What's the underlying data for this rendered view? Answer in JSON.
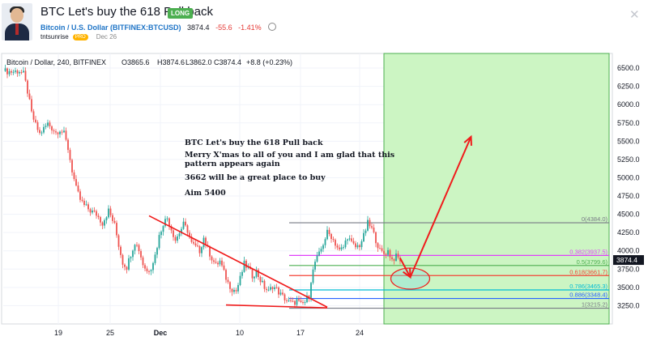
{
  "header": {
    "title": "BTC Let's buy the 618 Pull back",
    "badge": "LONG",
    "symbol": "Bitcoin / U.S. Dollar (BITFINEX:BTCUSD)",
    "price": "3874.4",
    "change": "-55.6",
    "change_pct": "-1.41%",
    "author": "tntsunrise",
    "author_badge": "PRO",
    "date": "Dec 26",
    "close_glyph": "✕"
  },
  "colors": {
    "up_candle": "#26a69a",
    "down_candle": "#ef5350",
    "accent_red": "#f01b1b",
    "target_zone": "#ccf5c3",
    "brand_blue": "#1e74c6"
  },
  "chart_data": {
    "type": "candlestick",
    "title": "Bitcoin / Dollar, 240, BITFINEX",
    "ohlc_legend": {
      "open": "O3865.6",
      "high": "H3874.6",
      "low": "L3862.0",
      "close": "C3874.4",
      "change": "+8.8 (+0.23%)"
    },
    "ylim": [
      3000,
      6700
    ],
    "y_ticks": [
      "6500.0",
      "6250.0",
      "6000.0",
      "5750.0",
      "5500.0",
      "5250.0",
      "5000.0",
      "4750.0",
      "4500.0",
      "4250.0",
      "4000.0",
      "3750.0",
      "3500.0",
      "3250.0"
    ],
    "x_ticks": [
      "19",
      "25",
      "Dec",
      "10",
      "17",
      "24"
    ],
    "last_price_label": "3874.4",
    "price_path": [
      [
        0,
        6460
      ],
      [
        4,
        6450
      ],
      [
        8,
        6460
      ],
      [
        10,
        6420
      ],
      [
        12,
        6180
      ],
      [
        14,
        5880
      ],
      [
        16,
        5720
      ],
      [
        18,
        5600
      ],
      [
        20,
        5670
      ],
      [
        22,
        5740
      ],
      [
        24,
        5680
      ],
      [
        26,
        5620
      ],
      [
        28,
        5660
      ],
      [
        30,
        5600
      ],
      [
        32,
        5400
      ],
      [
        34,
        5100
      ],
      [
        36,
        4850
      ],
      [
        38,
        4700
      ],
      [
        40,
        4620
      ],
      [
        43,
        4550
      ],
      [
        46,
        4500
      ],
      [
        49,
        4380
      ],
      [
        52,
        4550
      ],
      [
        55,
        4350
      ],
      [
        57,
        4080
      ],
      [
        59,
        3840
      ],
      [
        61,
        3780
      ],
      [
        63,
        3960
      ],
      [
        65,
        4120
      ],
      [
        67,
        4020
      ],
      [
        69,
        3820
      ],
      [
        71,
        3720
      ],
      [
        73,
        3780
      ],
      [
        75,
        3940
      ],
      [
        77,
        4200
      ],
      [
        79,
        4380
      ],
      [
        81,
        4450
      ],
      [
        83,
        4300
      ],
      [
        85,
        4150
      ],
      [
        87,
        4250
      ],
      [
        89,
        4360
      ],
      [
        91,
        4280
      ],
      [
        93,
        4100
      ],
      [
        95,
        4050
      ],
      [
        97,
        4000
      ],
      [
        99,
        4180
      ],
      [
        101,
        4020
      ],
      [
        103,
        3900
      ],
      [
        105,
        3800
      ],
      [
        107,
        3860
      ],
      [
        109,
        3700
      ],
      [
        111,
        3560
      ],
      [
        113,
        3480
      ],
      [
        115,
        3450
      ],
      [
        117,
        3620
      ],
      [
        119,
        3820
      ],
      [
        121,
        3760
      ],
      [
        123,
        3660
      ],
      [
        125,
        3720
      ],
      [
        127,
        3600
      ],
      [
        129,
        3500
      ],
      [
        131,
        3440
      ],
      [
        133,
        3520
      ],
      [
        135,
        3470
      ],
      [
        137,
        3400
      ],
      [
        139,
        3350
      ],
      [
        141,
        3300
      ],
      [
        143,
        3280
      ],
      [
        145,
        3320
      ],
      [
        147,
        3260
      ],
      [
        149,
        3300
      ],
      [
        151,
        3400
      ],
      [
        152,
        3600
      ],
      [
        154,
        3850
      ],
      [
        156,
        3950
      ],
      [
        158,
        4100
      ],
      [
        160,
        4250
      ],
      [
        162,
        4200
      ],
      [
        164,
        4100
      ],
      [
        166,
        4000
      ],
      [
        168,
        4050
      ],
      [
        170,
        4200
      ],
      [
        172,
        4100
      ],
      [
        174,
        4050
      ],
      [
        176,
        4080
      ],
      [
        178,
        4200
      ],
      [
        180,
        4380
      ],
      [
        182,
        4300
      ],
      [
        184,
        4150
      ],
      [
        186,
        4000
      ],
      [
        188,
        3960
      ],
      [
        190,
        4000
      ],
      [
        192,
        3880
      ],
      [
        194,
        3920
      ],
      [
        196,
        3874
      ]
    ],
    "fib_levels": [
      {
        "label": "0(4384.0)",
        "value": 4384.0,
        "color": "#787b86"
      },
      {
        "label": "0.382(3937.5)",
        "value": 3937.5,
        "color": "#e040fb"
      },
      {
        "label": "0.5(3799.6)",
        "value": 3799.6,
        "color": "#4caf50"
      },
      {
        "label": "0.618(3661.7)",
        "value": 3661.7,
        "color": "#f44336"
      },
      {
        "label": "0.786(3465.3)",
        "value": 3465.3,
        "color": "#00bcd4"
      },
      {
        "label": "0.886(3348.4)",
        "value": 3348.4,
        "color": "#2962ff"
      },
      {
        "label": "1(3215.2)",
        "value": 3215.2,
        "color": "#787b86"
      }
    ],
    "annotations": [
      "BTC Let's buy the 618 Pull back",
      "Merry X'mas to all of you and I am glad that this pattern appears again",
      "3662 will be a great place to buy",
      "Aim 5400"
    ],
    "projection": {
      "from": [
        196,
        3900
      ],
      "via": [
        201,
        3640
      ],
      "to": [
        231,
        5560
      ]
    },
    "wedge": {
      "upper": [
        [
          72,
          4480
        ],
        [
          160,
          3230
        ]
      ],
      "lower": [
        [
          110,
          3260
        ],
        [
          160,
          3220
        ]
      ]
    },
    "target_start_x": 188
  }
}
